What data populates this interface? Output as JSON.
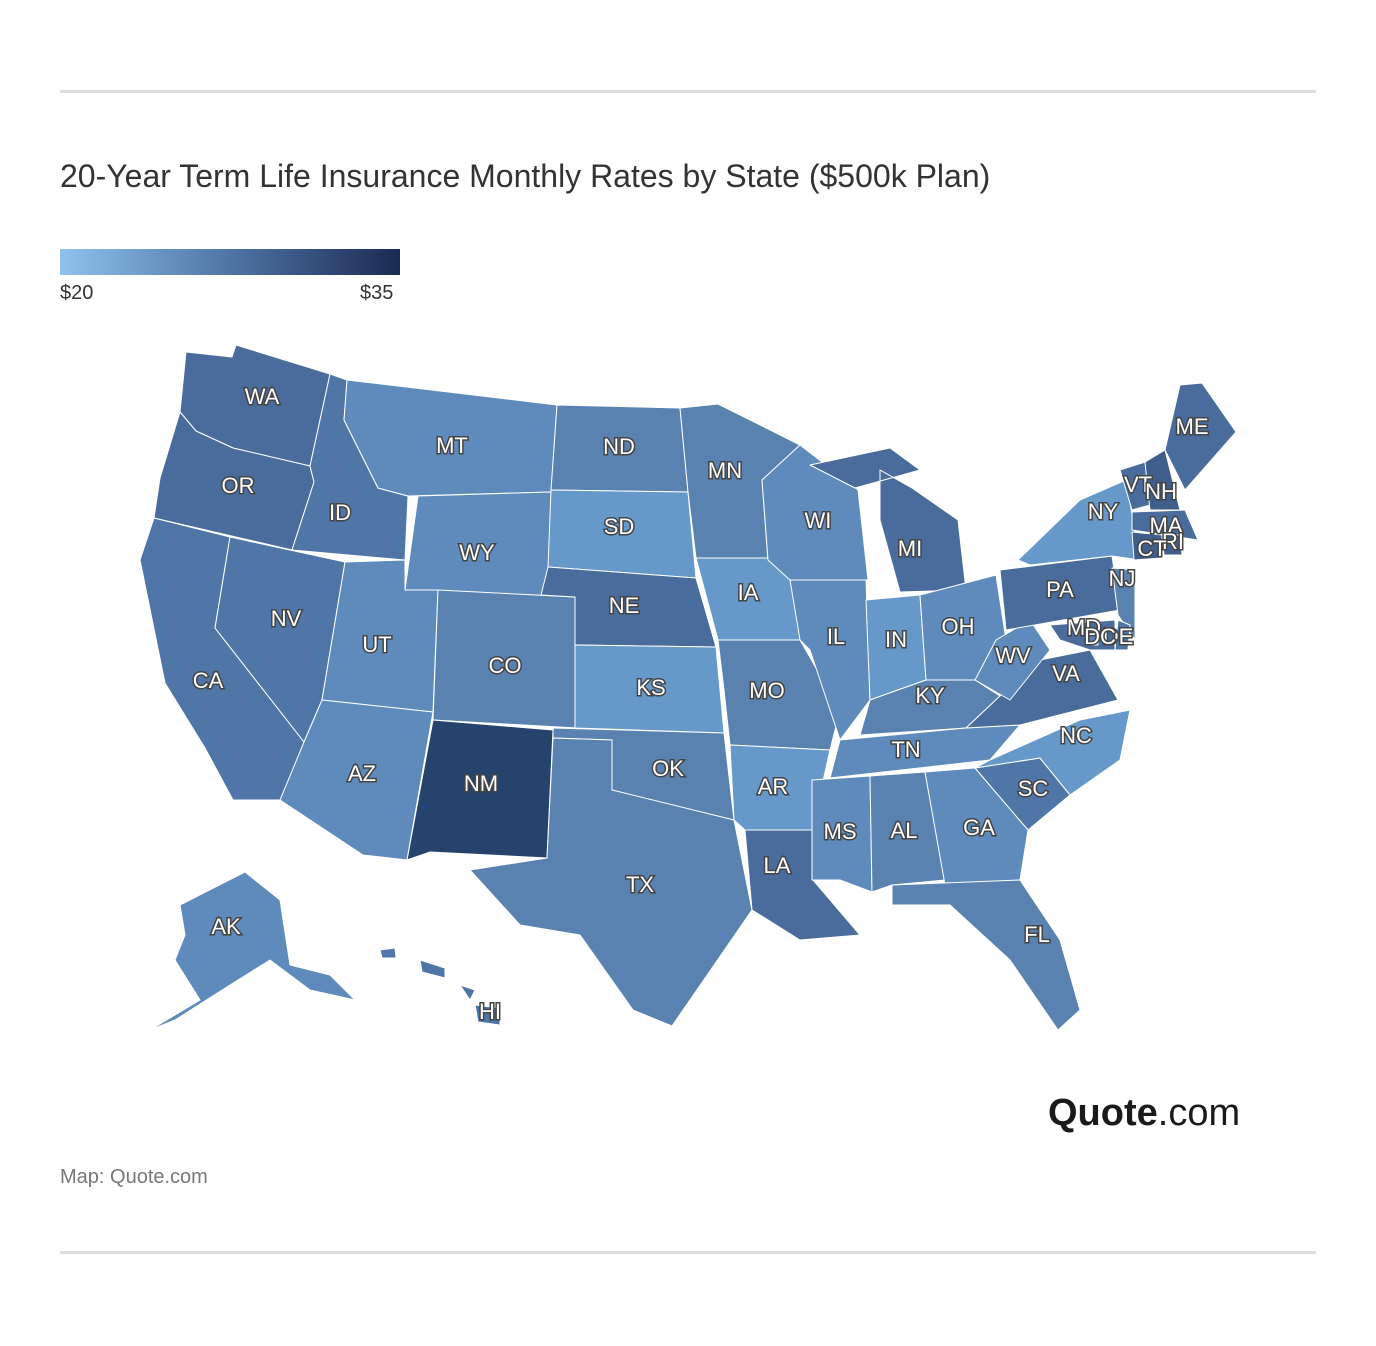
{
  "title": "20-Year Term Life Insurance Monthly Rates by State ($500k Plan)",
  "legend": {
    "min_label": "$20",
    "max_label": "$35",
    "min_value": 20,
    "max_value": 35,
    "color_min": "#8ec2ec",
    "color_max": "#1a2a52"
  },
  "source": "Map: Quote.com",
  "logo": {
    "strong": "Quote",
    "light": ".com"
  },
  "colors": {
    "c1": "#6699c9",
    "c2": "#5e8bbb",
    "c3": "#5a82b0",
    "c4": "#4f76a6",
    "c5": "#4a6c9c",
    "c6": "#3f5e8c",
    "c7": "#26436e"
  },
  "states": [
    {
      "code": "WA",
      "level": "c5"
    },
    {
      "code": "OR",
      "level": "c5"
    },
    {
      "code": "CA",
      "level": "c4"
    },
    {
      "code": "ID",
      "level": "c4"
    },
    {
      "code": "NV",
      "level": "c4"
    },
    {
      "code": "MT",
      "level": "c2"
    },
    {
      "code": "WY",
      "level": "c2"
    },
    {
      "code": "UT",
      "level": "c2"
    },
    {
      "code": "AZ",
      "level": "c2"
    },
    {
      "code": "CO",
      "level": "c3"
    },
    {
      "code": "NM",
      "level": "c7"
    },
    {
      "code": "ND",
      "level": "c3"
    },
    {
      "code": "SD",
      "level": "c1"
    },
    {
      "code": "NE",
      "level": "c5"
    },
    {
      "code": "KS",
      "level": "c1"
    },
    {
      "code": "OK",
      "level": "c3"
    },
    {
      "code": "TX",
      "level": "c3"
    },
    {
      "code": "MN",
      "level": "c3"
    },
    {
      "code": "IA",
      "level": "c1"
    },
    {
      "code": "MO",
      "level": "c3"
    },
    {
      "code": "AR",
      "level": "c1"
    },
    {
      "code": "LA",
      "level": "c5"
    },
    {
      "code": "WI",
      "level": "c2"
    },
    {
      "code": "IL",
      "level": "c2"
    },
    {
      "code": "MI",
      "level": "c5"
    },
    {
      "code": "IN",
      "level": "c1"
    },
    {
      "code": "OH",
      "level": "c2"
    },
    {
      "code": "KY",
      "level": "c3"
    },
    {
      "code": "TN",
      "level": "c2"
    },
    {
      "code": "MS",
      "level": "c2"
    },
    {
      "code": "AL",
      "level": "c3"
    },
    {
      "code": "GA",
      "level": "c2"
    },
    {
      "code": "FL",
      "level": "c3"
    },
    {
      "code": "SC",
      "level": "c4"
    },
    {
      "code": "NC",
      "level": "c1"
    },
    {
      "code": "VA",
      "level": "c5"
    },
    {
      "code": "WV",
      "level": "c2"
    },
    {
      "code": "PA",
      "level": "c5"
    },
    {
      "code": "NY",
      "level": "c1"
    },
    {
      "code": "VT",
      "level": "c5"
    },
    {
      "code": "NH",
      "level": "c6"
    },
    {
      "code": "ME",
      "level": "c5"
    },
    {
      "code": "MA",
      "level": "c5"
    },
    {
      "code": "RI",
      "level": "c6"
    },
    {
      "code": "CT",
      "level": "c6"
    },
    {
      "code": "NJ",
      "level": "c3"
    },
    {
      "code": "DE",
      "level": "c4"
    },
    {
      "code": "MD",
      "level": "c5"
    },
    {
      "code": "DC",
      "level": "c3"
    },
    {
      "code": "AK",
      "level": "c2"
    },
    {
      "code": "HI",
      "level": "c4"
    }
  ]
}
